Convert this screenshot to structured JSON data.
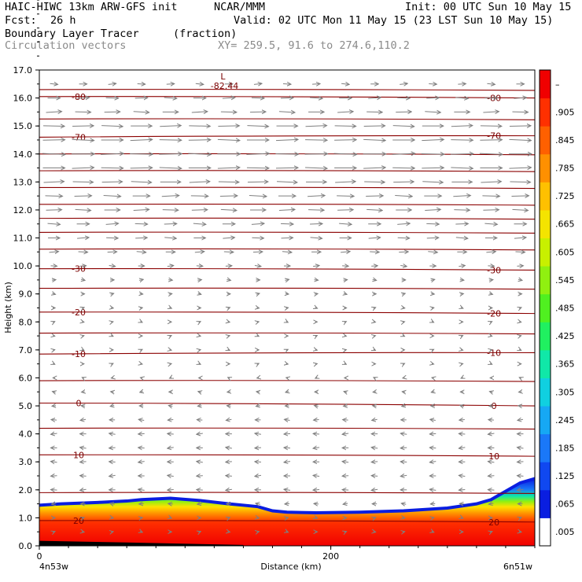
{
  "header": {
    "title_left": "HAIC-HIWC 13km ARW-GFS init",
    "org": "NCAR/MMM",
    "init": "Init: 00 UTC Sun 10 May 15",
    "fcst_label": "Fcst:",
    "fcst_value": "26 h",
    "valid": "Valid: 02 UTC Mon 11 May 15 (23 LST Sun 10 May 15)",
    "field1_name": "Boundary Layer Tracer",
    "field1_units": "(fraction)",
    "field2_name": "Circulation vectors",
    "xy_info": "XY= 259.5, 91.6 to 274.6,110.2"
  },
  "chart_data": {
    "type": "heatmap",
    "title": "Boundary Layer Tracer (fraction)",
    "xlabel": "Distance (km)",
    "ylabel": "Height (km)",
    "xlim": [
      0,
      340
    ],
    "ylim": [
      0,
      17
    ],
    "x_ticks": [
      0,
      200
    ],
    "x_tick_labels": [
      "0",
      "200"
    ],
    "x_end_labels": [
      "4n53w",
      "6n51w"
    ],
    "y_ticks": [
      0,
      1,
      2,
      3,
      4,
      5,
      6,
      7,
      8,
      9,
      10,
      11,
      12,
      13,
      14,
      15,
      16,
      17
    ],
    "y_tick_labels": [
      "0.0",
      "1.0",
      "2.0",
      "3.0",
      "4.0",
      "5.0",
      "6.0",
      "7.0",
      "8.0",
      "9.0",
      "10.0",
      "11.0",
      "12.0",
      "13.0",
      "14.0",
      "15.0",
      "16.0",
      "17.0"
    ],
    "colorbar": {
      "labels": [
        ".005",
        ".065",
        ".125",
        ".185",
        ".245",
        ".305",
        ".365",
        ".425",
        ".485",
        ".545",
        ".605",
        ".665",
        ".725",
        ".785",
        ".845",
        ".905",
        "–"
      ],
      "colors": [
        "#ffffff",
        "#0a1ee0",
        "#1048f0",
        "#1a78f8",
        "#16a8f4",
        "#10d0e0",
        "#10e8a8",
        "#20f060",
        "#50f020",
        "#90f010",
        "#c8f000",
        "#f4e400",
        "#ffc000",
        "#ff9000",
        "#ff6000",
        "#ff3000",
        "#f00000"
      ]
    },
    "temperature_contours": [
      {
        "label": "20",
        "y_left": 0.9,
        "y_right": 0.85
      },
      {
        "label": "10",
        "y_left": 3.25,
        "y_right": 3.2
      },
      {
        "label": "0",
        "y_left": 5.1,
        "y_right": 5.0
      },
      {
        "label": "-10",
        "y_left": 6.85,
        "y_right": 6.9
      },
      {
        "label": "-20",
        "y_left": 8.35,
        "y_right": 8.3
      },
      {
        "label": "-30",
        "y_left": 9.9,
        "y_right": 9.85
      },
      {
        "label": "-70",
        "y_left": 14.6,
        "y_right": 14.65
      },
      {
        "label": "-80",
        "y_left": 16.05,
        "y_right": 16.0
      }
    ],
    "unlabeled_contours_y": [
      1.9,
      4.2,
      5.9,
      7.6,
      9.2,
      10.6,
      11.2,
      11.7,
      12.2,
      12.8,
      13.4,
      14.0,
      15.25,
      16.3
    ],
    "minimum": {
      "label": "L",
      "value": "-82.44",
      "x": 126,
      "y": 16.6
    },
    "bl_tracer_top_km": [
      [
        0,
        1.45
      ],
      [
        15,
        1.5
      ],
      [
        40,
        1.55
      ],
      [
        60,
        1.6
      ],
      [
        70,
        1.65
      ],
      [
        90,
        1.7
      ],
      [
        110,
        1.62
      ],
      [
        130,
        1.5
      ],
      [
        150,
        1.4
      ],
      [
        160,
        1.25
      ],
      [
        170,
        1.2
      ],
      [
        190,
        1.18
      ],
      [
        220,
        1.2
      ],
      [
        250,
        1.25
      ],
      [
        280,
        1.35
      ],
      [
        300,
        1.5
      ],
      [
        310,
        1.65
      ],
      [
        320,
        1.95
      ],
      [
        330,
        2.25
      ],
      [
        340,
        2.4
      ]
    ],
    "wind_vectors": {
      "rows_km": [
        0.5,
        1.0,
        1.5,
        2.0,
        2.5,
        3.0,
        3.5,
        4.0,
        4.5,
        5.0,
        5.5,
        6.0,
        6.5,
        7.0,
        7.5,
        8.0,
        8.5,
        9.0,
        9.5,
        10.0,
        10.5,
        11.0,
        11.5,
        12.0,
        12.5,
        13.0,
        13.5,
        14.0,
        14.5,
        15.0,
        15.5,
        16.0,
        16.5
      ],
      "u_by_row": [
        0.3,
        0.3,
        -0.6,
        -0.8,
        -0.8,
        -0.8,
        -0.8,
        -0.8,
        -0.7,
        -0.5,
        -0.4,
        -0.2,
        0.0,
        0.1,
        0.2,
        0.2,
        0.3,
        0.4,
        0.5,
        0.8,
        1.2,
        1.5,
        1.6,
        2.0,
        2.2,
        2.6,
        2.8,
        2.9,
        2.8,
        2.7,
        2.0,
        1.6,
        1.0
      ],
      "columns_km": [
        10,
        30,
        50,
        70,
        90,
        110,
        130,
        150,
        170,
        190,
        210,
        230,
        250,
        270,
        290,
        310,
        330
      ]
    }
  }
}
